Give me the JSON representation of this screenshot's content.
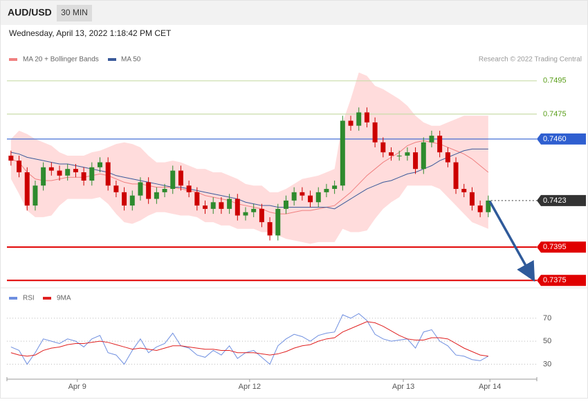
{
  "header": {
    "symbol": "AUD/USD",
    "timeframe": "30 MIN",
    "timestamp": "Wednesday, April 13, 2022 1:18:42 PM CET"
  },
  "chart_data": [
    {
      "type": "candlestick",
      "annotation": "Research © 2022 Trading Central",
      "up_color": "#2e8b2e",
      "down_color": "#cc0000",
      "band_color": "#ffd6d6",
      "xlim": [
        -0.5,
        65
      ],
      "xticks": [
        {
          "value": 8.2,
          "label": "Apr 9"
        },
        {
          "value": 29.5,
          "label": "Apr 12"
        },
        {
          "value": 48.5,
          "label": "Apr 13"
        },
        {
          "value": 59.2,
          "label": "Apr 14"
        }
      ],
      "ylim": [
        0.7373,
        0.7502
      ],
      "open": [
        0.745,
        0.7447,
        0.744,
        0.742,
        0.7432,
        0.7443,
        0.7441,
        0.7438,
        0.7442,
        0.744,
        0.7435,
        0.7443,
        0.7446,
        0.7432,
        0.7428,
        0.742,
        0.7426,
        0.7434,
        0.7424,
        0.7428,
        0.743,
        0.7441,
        0.7432,
        0.7428,
        0.742,
        0.7418,
        0.7422,
        0.7418,
        0.7424,
        0.7414,
        0.7416,
        0.7418,
        0.741,
        0.7402,
        0.7418,
        0.7423,
        0.7428,
        0.7426,
        0.7422,
        0.7428,
        0.743,
        0.7432,
        0.7471,
        0.7468,
        0.7476,
        0.747,
        0.7458,
        0.7452,
        0.745,
        0.745,
        0.7452,
        0.7442,
        0.7458,
        0.7462,
        0.7452,
        0.7446,
        0.743,
        0.7428,
        0.742,
        0.7416
      ],
      "high": [
        0.7453,
        0.745,
        0.7443,
        0.7435,
        0.7446,
        0.7446,
        0.7444,
        0.7445,
        0.7445,
        0.7443,
        0.7446,
        0.7449,
        0.7449,
        0.7435,
        0.7431,
        0.7429,
        0.7437,
        0.7437,
        0.7431,
        0.7433,
        0.7444,
        0.7444,
        0.7435,
        0.7431,
        0.7423,
        0.7425,
        0.7425,
        0.7427,
        0.7427,
        0.7419,
        0.7421,
        0.7421,
        0.7413,
        0.7421,
        0.7426,
        0.7431,
        0.7431,
        0.7429,
        0.7431,
        0.7433,
        0.7435,
        0.7474,
        0.7474,
        0.7479,
        0.7479,
        0.7473,
        0.7461,
        0.7455,
        0.7453,
        0.7455,
        0.7455,
        0.7461,
        0.7465,
        0.7465,
        0.7455,
        0.7449,
        0.7433,
        0.7431,
        0.7423,
        0.7426
      ],
      "low": [
        0.7444,
        0.7437,
        0.7417,
        0.7417,
        0.7429,
        0.7438,
        0.7435,
        0.7435,
        0.7437,
        0.7432,
        0.7432,
        0.744,
        0.7429,
        0.7425,
        0.7417,
        0.7417,
        0.7423,
        0.7421,
        0.7421,
        0.7425,
        0.7427,
        0.7429,
        0.7425,
        0.7417,
        0.7415,
        0.7415,
        0.7415,
        0.7415,
        0.7411,
        0.7411,
        0.7413,
        0.7407,
        0.7399,
        0.7399,
        0.7415,
        0.742,
        0.7423,
        0.7419,
        0.7419,
        0.7425,
        0.7427,
        0.7429,
        0.7465,
        0.7465,
        0.7467,
        0.7455,
        0.7449,
        0.7447,
        0.7447,
        0.7447,
        0.7439,
        0.7439,
        0.7455,
        0.7449,
        0.7443,
        0.7427,
        0.7425,
        0.7417,
        0.7413,
        0.7413
      ],
      "close": [
        0.7447,
        0.744,
        0.742,
        0.7432,
        0.7443,
        0.7441,
        0.7438,
        0.7442,
        0.744,
        0.7435,
        0.7443,
        0.7446,
        0.7432,
        0.7428,
        0.742,
        0.7426,
        0.7434,
        0.7424,
        0.7428,
        0.743,
        0.7441,
        0.7432,
        0.7428,
        0.742,
        0.7418,
        0.7422,
        0.7418,
        0.7424,
        0.7414,
        0.7416,
        0.7418,
        0.741,
        0.7402,
        0.7418,
        0.7423,
        0.7428,
        0.7426,
        0.7422,
        0.7428,
        0.743,
        0.7432,
        0.7471,
        0.7468,
        0.7476,
        0.747,
        0.7458,
        0.7452,
        0.745,
        0.745,
        0.7452,
        0.7442,
        0.7458,
        0.7462,
        0.7452,
        0.7446,
        0.743,
        0.7428,
        0.742,
        0.7416,
        0.7423
      ],
      "series": [
        {
          "name": "MA 20 + Bollinger Bands",
          "color": "#f08080",
          "values": [
            0.7448,
            0.7446,
            0.744,
            0.7436,
            0.7435,
            0.7435,
            0.7436,
            0.7437,
            0.7437,
            0.7437,
            0.7438,
            0.7439,
            0.7438,
            0.7436,
            0.7434,
            0.7433,
            0.7433,
            0.7432,
            0.7431,
            0.7431,
            0.7431,
            0.743,
            0.7429,
            0.7428,
            0.7426,
            0.7425,
            0.7424,
            0.7423,
            0.7421,
            0.742,
            0.7419,
            0.7418,
            0.7416,
            0.7415,
            0.7415,
            0.7416,
            0.7417,
            0.7417,
            0.7418,
            0.7419,
            0.742,
            0.7424,
            0.7428,
            0.7433,
            0.7438,
            0.7442,
            0.7446,
            0.7449,
            0.7452,
            0.7456,
            0.7458,
            0.7459,
            0.7458,
            0.7457,
            0.7455,
            0.7453,
            0.7451,
            0.7448,
            0.7444,
            0.744
          ],
          "upper": [
            0.746,
            0.7465,
            0.7463,
            0.746,
            0.7458,
            0.7456,
            0.7452,
            0.745,
            0.745,
            0.745,
            0.7452,
            0.7453,
            0.7455,
            0.7457,
            0.7458,
            0.7457,
            0.7455,
            0.745,
            0.7446,
            0.7446,
            0.7447,
            0.7446,
            0.7444,
            0.7442,
            0.7442,
            0.744,
            0.744,
            0.7438,
            0.7436,
            0.7433,
            0.7432,
            0.7432,
            0.7428,
            0.7428,
            0.743,
            0.7433,
            0.7436,
            0.7437,
            0.7438,
            0.744,
            0.7442,
            0.747,
            0.7484,
            0.75,
            0.7498,
            0.7492,
            0.749,
            0.7487,
            0.7484,
            0.748,
            0.7474,
            0.747,
            0.7468,
            0.7468,
            0.747,
            0.7472,
            0.7474,
            0.7474,
            0.7474,
            0.7474
          ],
          "lower": [
            0.7436,
            0.7427,
            0.7417,
            0.7413,
            0.7413,
            0.7414,
            0.742,
            0.7424,
            0.7424,
            0.7424,
            0.7424,
            0.7425,
            0.7421,
            0.7415,
            0.741,
            0.7409,
            0.7411,
            0.7414,
            0.7416,
            0.7416,
            0.7415,
            0.7414,
            0.7414,
            0.7413,
            0.741,
            0.741,
            0.7408,
            0.7408,
            0.7406,
            0.7406,
            0.7406,
            0.7404,
            0.7404,
            0.7402,
            0.74,
            0.7399,
            0.7398,
            0.7397,
            0.7398,
            0.7398,
            0.7398,
            0.7406,
            0.7404,
            0.7404,
            0.7405,
            0.7412,
            0.7418,
            0.7422,
            0.7425,
            0.7432,
            0.7432,
            0.7432,
            0.7432,
            0.743,
            0.7425,
            0.742,
            0.7415,
            0.741,
            0.7408,
            0.7406
          ]
        },
        {
          "name": "MA 50",
          "color": "#3a5a9a",
          "values": [
            0.7452,
            0.7451,
            0.7449,
            0.7448,
            0.7447,
            0.7446,
            0.7445,
            0.7445,
            0.7444,
            0.7443,
            0.7442,
            0.7441,
            0.744,
            0.7438,
            0.7437,
            0.7436,
            0.7435,
            0.7434,
            0.7433,
            0.7432,
            0.7431,
            0.7431,
            0.743,
            0.7429,
            0.7428,
            0.7427,
            0.7426,
            0.7425,
            0.7424,
            0.7422,
            0.7421,
            0.742,
            0.742,
            0.7419,
            0.7419,
            0.7419,
            0.7419,
            0.7419,
            0.7419,
            0.7419,
            0.7418,
            0.7421,
            0.7424,
            0.7427,
            0.743,
            0.7432,
            0.7434,
            0.7435,
            0.7437,
            0.7439,
            0.744,
            0.7442,
            0.7444,
            0.7447,
            0.7449,
            0.7451,
            0.7453,
            0.7454,
            0.7454,
            0.7454
          ]
        }
      ],
      "levels": [
        {
          "value": 0.7495,
          "label": "0.7495",
          "color": "#c8dca8",
          "text_color": "#5a9e1a",
          "style": "solid",
          "boxed": false
        },
        {
          "value": 0.7475,
          "label": "0.7475",
          "color": "#c8dca8",
          "text_color": "#5a9e1a",
          "style": "solid",
          "boxed": false
        },
        {
          "value": 0.746,
          "label": "0.7460",
          "color": "#2f5fd0",
          "text_color": "#ffffff",
          "style": "solid",
          "boxed": true
        },
        {
          "value": 0.7423,
          "label": "0.7423",
          "color": "#333333",
          "text_color": "#ffffff",
          "style": "dotted",
          "boxed": true
        },
        {
          "value": 0.7395,
          "label": "0.7395",
          "color": "#e00000",
          "text_color": "#ffffff",
          "style": "solid",
          "boxed": true
        },
        {
          "value": 0.7375,
          "label": "0.7375",
          "color": "#e00000",
          "text_color": "#ffffff",
          "style": "solid",
          "boxed": true
        }
      ]
    },
    {
      "type": "line",
      "xlim": [
        -0.5,
        65
      ],
      "ylim": [
        17,
        94
      ],
      "yticks": [
        30,
        50,
        70
      ],
      "series": [
        {
          "name": "RSI",
          "color": "#6f8fe0",
          "values": [
            45,
            42,
            30,
            40,
            52,
            50,
            48,
            52,
            50,
            45,
            52,
            55,
            40,
            38,
            30,
            42,
            52,
            40,
            45,
            48,
            57,
            46,
            44,
            38,
            36,
            42,
            38,
            46,
            35,
            40,
            42,
            36,
            30,
            46,
            52,
            56,
            54,
            50,
            55,
            57,
            58,
            73,
            70,
            74,
            68,
            56,
            52,
            50,
            51,
            52,
            44,
            58,
            60,
            50,
            46,
            38,
            37,
            34,
            33,
            37
          ]
        },
        {
          "name": "9MA",
          "color": "#e02020",
          "values": [
            40,
            38,
            37,
            38,
            42,
            44,
            45,
            47,
            48,
            48,
            49,
            50,
            49,
            47,
            45,
            43,
            44,
            43,
            42,
            44,
            46,
            46,
            45,
            44,
            43,
            43,
            42,
            42,
            40,
            40,
            40,
            39,
            38,
            39,
            41,
            44,
            46,
            47,
            50,
            52,
            53,
            58,
            61,
            64,
            67,
            66,
            63,
            59,
            55,
            52,
            51,
            51,
            53,
            53,
            52,
            48,
            44,
            41,
            38,
            37
          ]
        }
      ]
    }
  ]
}
